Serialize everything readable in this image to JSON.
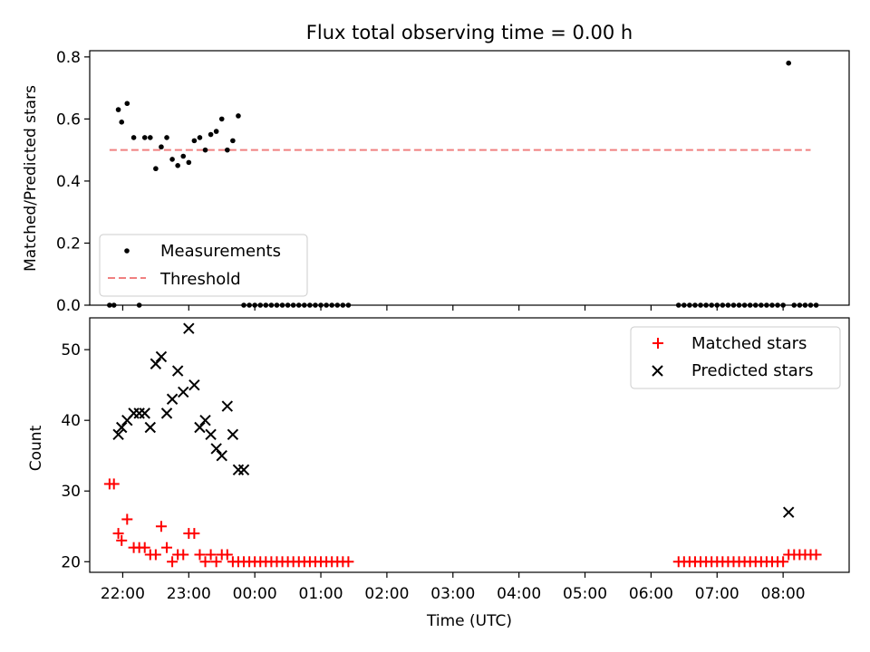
{
  "chart_data": [
    {
      "type": "scatter",
      "title": "Flux total observing time = 0.00 h",
      "ylabel": "Matched/Predicted stars",
      "xlabel": "",
      "xlim": [
        "21:30",
        "09:00"
      ],
      "ylim": [
        0,
        0.82
      ],
      "yticks": [
        "0.0",
        "0.2",
        "0.4",
        "0.6",
        "0.8"
      ],
      "legend": {
        "placement": "lower-left",
        "entries": [
          "Measurements",
          "Threshold"
        ]
      },
      "series": [
        {
          "name": "Measurements",
          "marker": "dot",
          "color": "#000000",
          "x": [
            "21:48",
            "21:52",
            "21:56",
            "21:59",
            "22:04",
            "22:10",
            "22:15",
            "22:20",
            "22:25",
            "22:30",
            "22:35",
            "22:40",
            "22:45",
            "22:50",
            "22:55",
            "23:00",
            "23:05",
            "23:10",
            "23:15",
            "23:20",
            "23:25",
            "23:30",
            "23:35",
            "23:40",
            "23:45",
            "23:50",
            "23:55",
            "00:00",
            "00:05",
            "00:10",
            "00:15",
            "00:20",
            "00:25",
            "00:30",
            "00:35",
            "00:40",
            "00:45",
            "00:50",
            "00:55",
            "01:00",
            "01:05",
            "01:10",
            "01:15",
            "01:20",
            "01:25",
            "06:25",
            "06:30",
            "06:35",
            "06:40",
            "06:45",
            "06:50",
            "06:55",
            "07:00",
            "07:05",
            "07:10",
            "07:15",
            "07:20",
            "07:25",
            "07:30",
            "07:35",
            "07:40",
            "07:45",
            "07:50",
            "07:55",
            "08:00",
            "08:05",
            "08:10",
            "08:15",
            "08:20",
            "08:25",
            "08:30"
          ],
          "y": [
            0.0,
            0.0,
            0.63,
            0.59,
            0.65,
            0.54,
            0.0,
            0.54,
            0.54,
            0.44,
            0.51,
            0.54,
            0.47,
            0.45,
            0.48,
            0.46,
            0.53,
            0.54,
            0.5,
            0.55,
            0.56,
            0.6,
            0.5,
            0.53,
            0.61,
            0.0,
            0.0,
            0.0,
            0.0,
            0.0,
            0.0,
            0.0,
            0.0,
            0.0,
            0.0,
            0.0,
            0.0,
            0.0,
            0.0,
            0.0,
            0.0,
            0.0,
            0.0,
            0.0,
            0.0,
            0.0,
            0.0,
            0.0,
            0.0,
            0.0,
            0.0,
            0.0,
            0.0,
            0.0,
            0.0,
            0.0,
            0.0,
            0.0,
            0.0,
            0.0,
            0.0,
            0.0,
            0.0,
            0.0,
            0.0,
            0.78,
            0.0,
            0.0,
            0.0,
            0.0,
            0.0
          ]
        },
        {
          "name": "Threshold",
          "style": "dashed-line",
          "color": "#f08080",
          "x": [
            "21:48",
            "08:25"
          ],
          "y": [
            0.5,
            0.5
          ]
        }
      ]
    },
    {
      "type": "scatter",
      "title": "",
      "ylabel": "Count",
      "xlabel": "Time (UTC)",
      "xlim": [
        "21:30",
        "09:00"
      ],
      "ylim": [
        18.5,
        54.5
      ],
      "yticks": [
        "20",
        "30",
        "40",
        "50"
      ],
      "xticks": [
        "22:00",
        "23:00",
        "00:00",
        "01:00",
        "02:00",
        "03:00",
        "04:00",
        "05:00",
        "06:00",
        "07:00",
        "08:00"
      ],
      "legend": {
        "placement": "upper-right",
        "entries": [
          "Matched stars",
          "Predicted stars"
        ]
      },
      "series": [
        {
          "name": "Matched stars",
          "marker": "plus",
          "color": "#ff0000",
          "x": [
            "21:48",
            "21:52",
            "21:56",
            "21:59",
            "22:04",
            "22:10",
            "22:15",
            "22:20",
            "22:25",
            "22:30",
            "22:35",
            "22:40",
            "22:45",
            "22:50",
            "22:55",
            "23:00",
            "23:05",
            "23:10",
            "23:15",
            "23:20",
            "23:25",
            "23:30",
            "23:35",
            "23:40",
            "23:45",
            "23:50",
            "23:55",
            "00:00",
            "00:05",
            "00:10",
            "00:15",
            "00:20",
            "00:25",
            "00:30",
            "00:35",
            "00:40",
            "00:45",
            "00:50",
            "00:55",
            "01:00",
            "01:05",
            "01:10",
            "01:15",
            "01:20",
            "01:25",
            "06:25",
            "06:30",
            "06:35",
            "06:40",
            "06:45",
            "06:50",
            "06:55",
            "07:00",
            "07:05",
            "07:10",
            "07:15",
            "07:20",
            "07:25",
            "07:30",
            "07:35",
            "07:40",
            "07:45",
            "07:50",
            "07:55",
            "08:00",
            "08:05",
            "08:10",
            "08:15",
            "08:20",
            "08:25",
            "08:30"
          ],
          "y": [
            31,
            31,
            24,
            23,
            26,
            22,
            22,
            22,
            21,
            21,
            25,
            22,
            20,
            21,
            21,
            24,
            24,
            21,
            20,
            21,
            20,
            21,
            21,
            20,
            20,
            20,
            20,
            20,
            20,
            20,
            20,
            20,
            20,
            20,
            20,
            20,
            20,
            20,
            20,
            20,
            20,
            20,
            20,
            20,
            20,
            20,
            20,
            20,
            20,
            20,
            20,
            20,
            20,
            20,
            20,
            20,
            20,
            20,
            20,
            20,
            20,
            20,
            20,
            20,
            20,
            21,
            21,
            21,
            21,
            21,
            21
          ]
        },
        {
          "name": "Predicted stars",
          "marker": "x",
          "color": "#000000",
          "x": [
            "21:56",
            "21:59",
            "22:04",
            "22:10",
            "22:15",
            "22:20",
            "22:25",
            "22:30",
            "22:35",
            "22:40",
            "22:45",
            "22:50",
            "22:55",
            "23:00",
            "23:05",
            "23:10",
            "23:15",
            "23:20",
            "23:25",
            "23:30",
            "23:35",
            "23:40",
            "23:45",
            "23:50",
            "08:05"
          ],
          "y": [
            38,
            39,
            40,
            41,
            41,
            41,
            39,
            48,
            49,
            41,
            43,
            47,
            44,
            53,
            45,
            39,
            40,
            38,
            36,
            35,
            42,
            38,
            33,
            33,
            27
          ]
        }
      ]
    }
  ]
}
